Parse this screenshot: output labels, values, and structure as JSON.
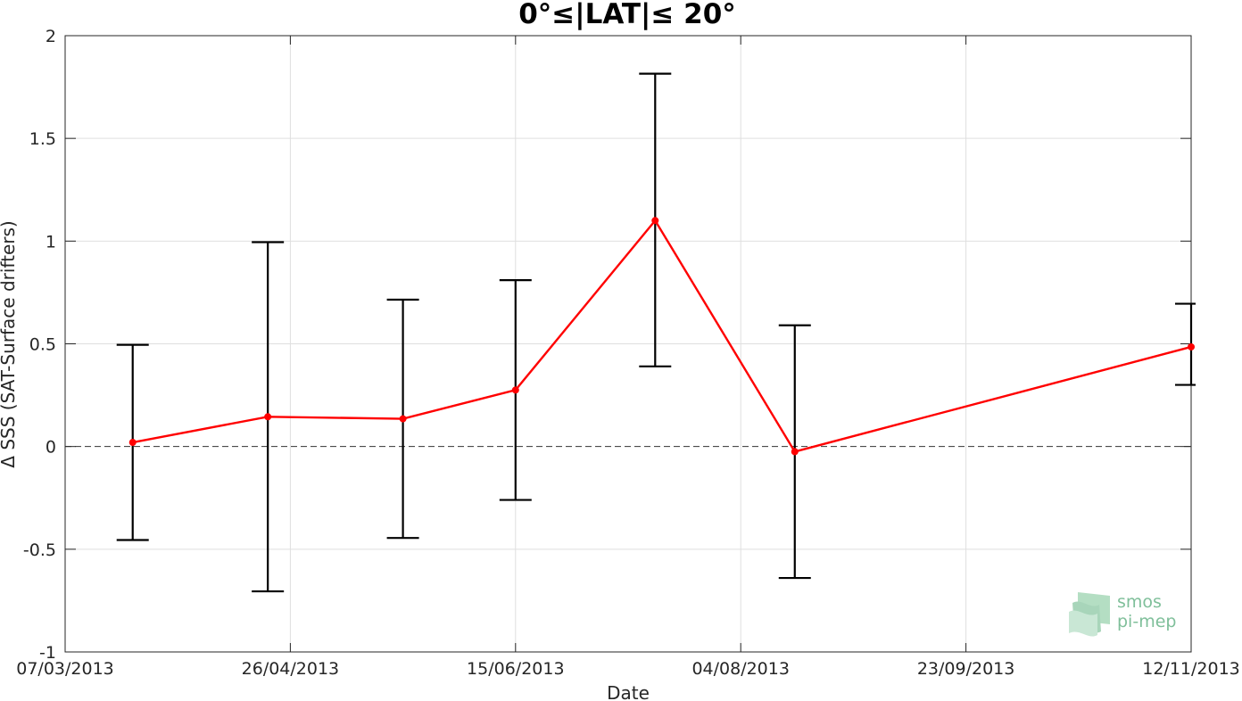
{
  "chart_data": {
    "type": "line",
    "title": "0°≤|LAT|≤ 20°",
    "xlabel": "Date",
    "ylabel": "Δ SSS (SAT-Surface drifters)",
    "x_tick_labels": [
      "07/03/2013",
      "26/04/2013",
      "15/06/2013",
      "04/08/2013",
      "23/09/2013",
      "12/11/2013"
    ],
    "x_ticks": [
      "2013-03-07",
      "2013-04-26",
      "2013-06-15",
      "2013-08-04",
      "2013-09-23",
      "2013-11-12"
    ],
    "xlim": [
      "2013-03-07",
      "2013-11-12"
    ],
    "y_tick_labels": [
      "-1",
      "-0.5",
      "0",
      "0.5",
      "1",
      "1.5",
      "2"
    ],
    "y_ticks": [
      -1,
      -0.5,
      0,
      0.5,
      1,
      1.5,
      2
    ],
    "ylim": [
      -1,
      2
    ],
    "grid": true,
    "zero_line": "dashed",
    "series": [
      {
        "color": "#ff0000",
        "points": [
          {
            "x": "2013-03-22",
            "y": 0.02,
            "err_low": -0.455,
            "err_high": 0.495
          },
          {
            "x": "2013-04-21",
            "y": 0.145,
            "err_low": -0.705,
            "err_high": 0.995
          },
          {
            "x": "2013-05-21",
            "y": 0.135,
            "err_low": -0.445,
            "err_high": 0.715
          },
          {
            "x": "2013-06-15",
            "y": 0.275,
            "err_low": -0.26,
            "err_high": 0.81
          },
          {
            "x": "2013-07-16",
            "y": 1.1,
            "err_low": 0.39,
            "err_high": 1.815
          },
          {
            "x": "2013-08-16",
            "y": -0.025,
            "err_low": -0.64,
            "err_high": 0.59
          },
          {
            "x": "2013-11-12",
            "y": 0.485,
            "err_low": 0.3,
            "err_high": 0.695
          }
        ]
      }
    ]
  },
  "logo": {
    "line1": "smos",
    "line2": "pi-mep",
    "color": "#7fbf9a"
  }
}
